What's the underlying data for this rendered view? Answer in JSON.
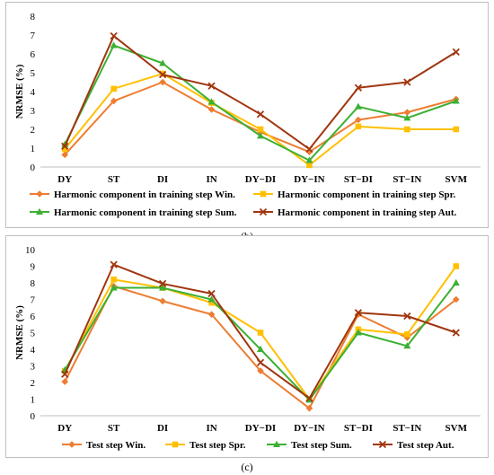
{
  "chart_data": [
    {
      "type": "line",
      "caption": "(b)",
      "ylabel": "NRMSE (%)",
      "ylim": [
        0,
        8
      ],
      "yticks": [
        0,
        1,
        2,
        3,
        4,
        5,
        6,
        7,
        8
      ],
      "categories": [
        "DY",
        "ST",
        "DI",
        "IN",
        "DY−DI",
        "DY−IN",
        "ST−DI",
        "ST−IN",
        "SVM"
      ],
      "grid": false,
      "legend_position": "bottom",
      "series": [
        {
          "name": "Harmonic component in training step Win.",
          "color": "#ED7D31",
          "marker": "diamond",
          "values": [
            0.65,
            3.5,
            4.5,
            3.05,
            1.85,
            0.8,
            2.5,
            2.9,
            3.6
          ]
        },
        {
          "name": "Harmonic component in training step Spr.",
          "color": "#FFC000",
          "marker": "square",
          "values": [
            0.95,
            4.15,
            4.95,
            3.4,
            2.0,
            0.1,
            2.15,
            2.0,
            2.0
          ]
        },
        {
          "name": "Harmonic component in training step Sum.",
          "color": "#3CB034",
          "marker": "triangle",
          "values": [
            1.2,
            6.45,
            5.5,
            3.45,
            1.65,
            0.35,
            3.2,
            2.6,
            3.5
          ]
        },
        {
          "name": "Harmonic component in training step Aut.",
          "color": "#A0360F",
          "marker": "x",
          "values": [
            1.1,
            6.95,
            4.9,
            4.3,
            2.8,
            0.95,
            4.2,
            4.5,
            6.1
          ]
        }
      ]
    },
    {
      "type": "line",
      "caption": "(c)",
      "ylabel": "NRMSE (%)",
      "ylim": [
        0,
        10
      ],
      "yticks": [
        0,
        1,
        2,
        3,
        4,
        5,
        6,
        7,
        8,
        9,
        10
      ],
      "categories": [
        "DY",
        "ST",
        "DI",
        "IN",
        "DY−DI",
        "DY−IN",
        "ST−DI",
        "ST−IN",
        "SVM"
      ],
      "grid": false,
      "legend_position": "bottom",
      "series": [
        {
          "name": "Test step Win.",
          "color": "#ED7D31",
          "marker": "diamond",
          "values": [
            2.05,
            7.8,
            6.9,
            6.1,
            2.7,
            0.45,
            6.1,
            4.7,
            7.0
          ]
        },
        {
          "name": "Test step Spr.",
          "color": "#FFC000",
          "marker": "square",
          "values": [
            2.7,
            8.2,
            7.7,
            6.8,
            5.0,
            1.0,
            5.2,
            4.9,
            9.0
          ]
        },
        {
          "name": "Test step Sum.",
          "color": "#3CB034",
          "marker": "triangle",
          "values": [
            2.75,
            7.7,
            7.7,
            7.0,
            4.0,
            0.95,
            5.0,
            4.2,
            8.0
          ]
        },
        {
          "name": "Test step Aut.",
          "color": "#A0360F",
          "marker": "x",
          "values": [
            2.5,
            9.1,
            7.95,
            7.35,
            3.2,
            1.05,
            6.2,
            6.0,
            5.0
          ]
        }
      ]
    }
  ]
}
